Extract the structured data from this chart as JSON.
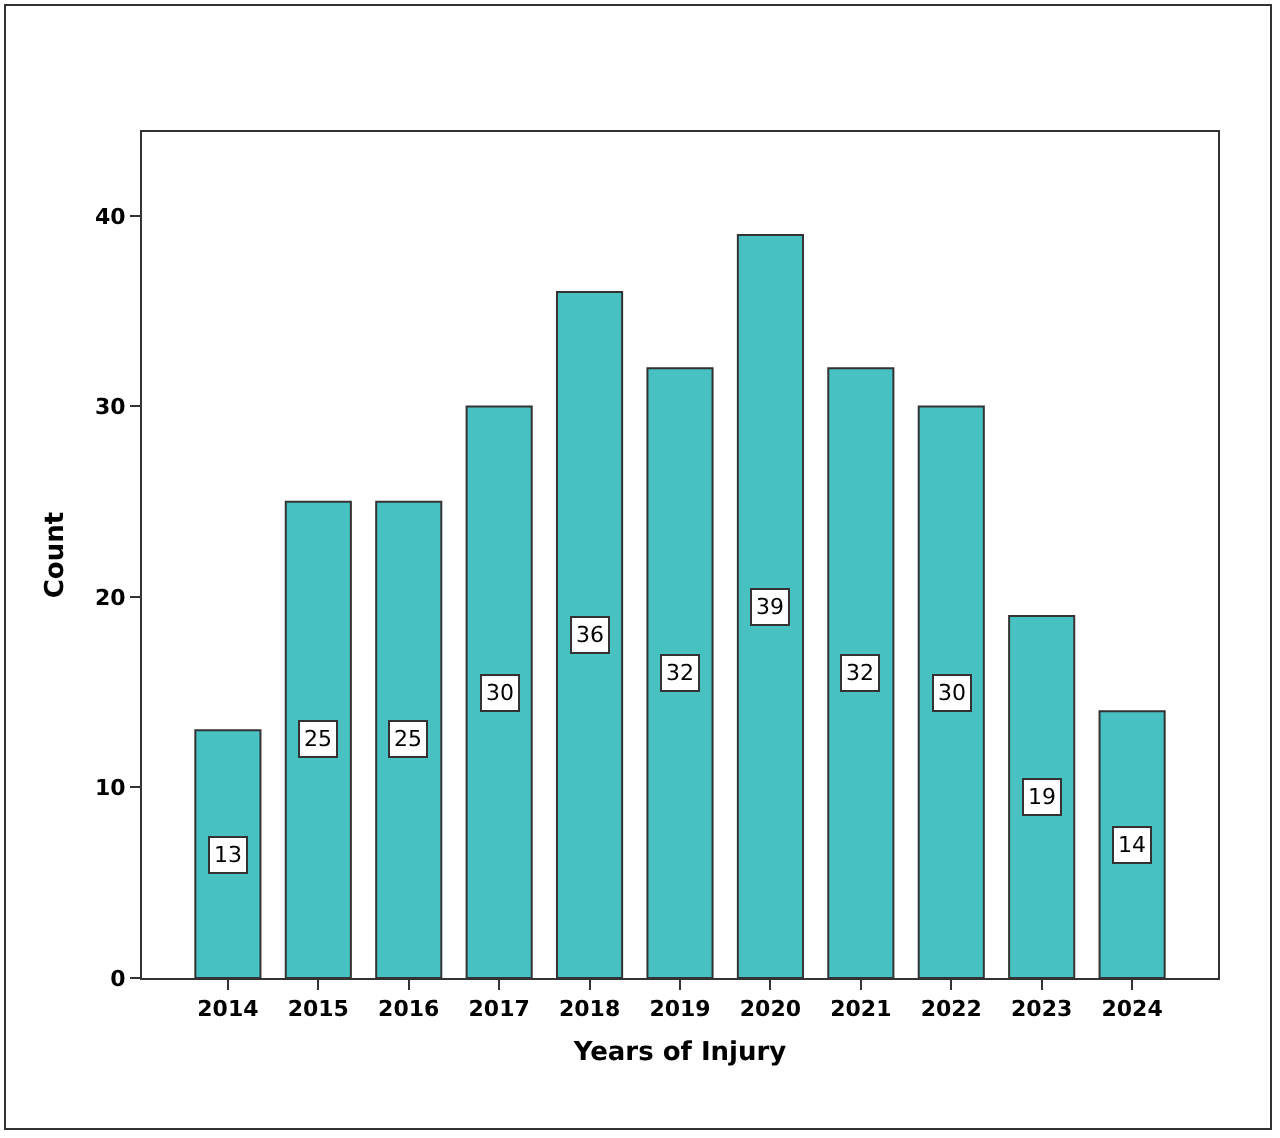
{
  "chart_data": {
    "type": "bar",
    "xlabel": "Years of Injury",
    "ylabel": "Count",
    "categories": [
      "2014",
      "2015",
      "2016",
      "2017",
      "2018",
      "2019",
      "2020",
      "2021",
      "2022",
      "2023",
      "2024"
    ],
    "values": [
      13,
      25,
      25,
      30,
      36,
      32,
      39,
      32,
      30,
      19,
      14
    ],
    "color": "#48c1c3",
    "ylim": [
      0,
      44.4
    ],
    "yticks": [
      0,
      10,
      20,
      30,
      40
    ],
    "grid": false,
    "data_labels": true
  }
}
